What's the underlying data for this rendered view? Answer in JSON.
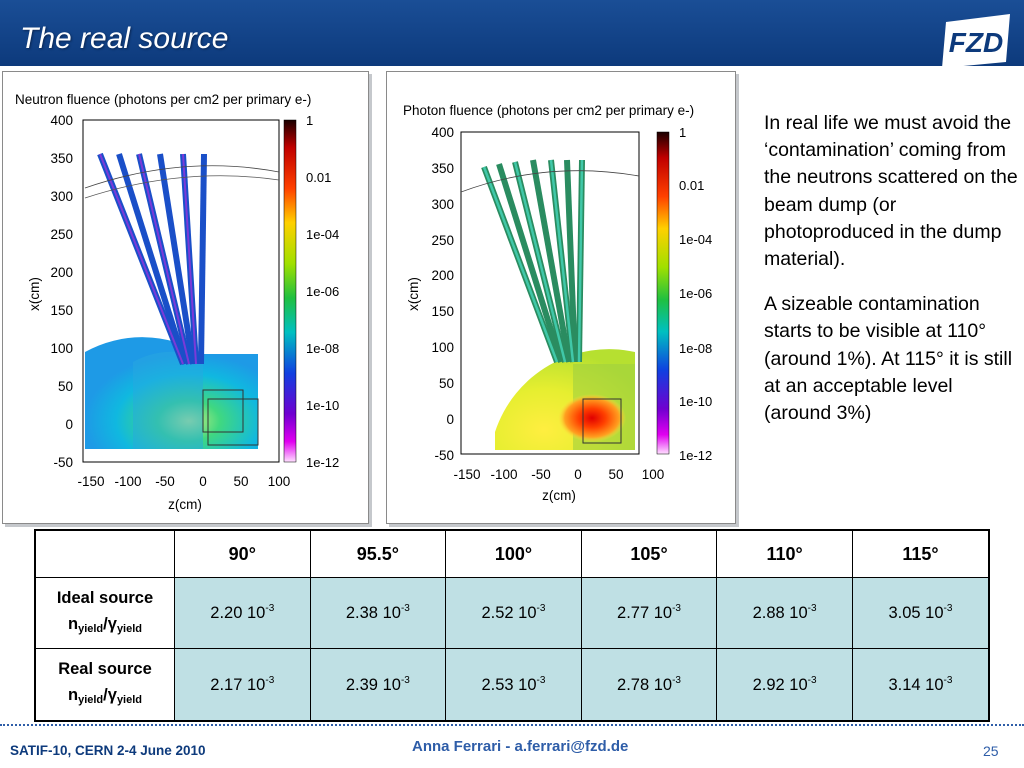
{
  "slide": {
    "title": "The real source",
    "logo_text": "FZD"
  },
  "plots": [
    {
      "title": "Neutron fluence (photons per cm2 per primary e-)",
      "ylabel": "x(cm)",
      "xlabel": "z(cm)",
      "yticks": [
        "400",
        "350",
        "300",
        "250",
        "200",
        "150",
        "100",
        "50",
        "0",
        "-50"
      ],
      "xticks": [
        "-150",
        "-100",
        "-50",
        "0",
        "50",
        "100"
      ],
      "colorbar_labels": [
        "1",
        "0.01",
        "1e-04",
        "1e-06",
        "1e-08",
        "1e-10",
        "1e-12"
      ]
    },
    {
      "title": "Photon fluence (photons per cm2 per primary e-)",
      "ylabel": "x(cm)",
      "xlabel": "z(cm)",
      "yticks": [
        "400",
        "350",
        "300",
        "250",
        "200",
        "150",
        "100",
        "50",
        "0",
        "-50"
      ],
      "xticks": [
        "-150",
        "-100",
        "-50",
        "0",
        "50",
        "100"
      ],
      "colorbar_labels": [
        "1",
        "0.01",
        "1e-04",
        "1e-06",
        "1e-08",
        "1e-10",
        "1e-12"
      ]
    }
  ],
  "text": {
    "para1": "In real life we must avoid  the ‘contamination’ coming from the neutrons scattered on the beam dump (or photoproduced in the dump material).",
    "para2": "A sizeable contamination starts to be visible at 110° (around 1%). At 115° it is still at an acceptable level  (around 3%)"
  },
  "table": {
    "headers": [
      "90°",
      "95.5°",
      "100°",
      "105°",
      "110°",
      "115°"
    ],
    "rows": [
      {
        "label": "Ideal source",
        "values": [
          "2.20 10",
          "2.38 10",
          "2.52 10",
          "2.77 10",
          "2.88 10",
          "3.05 10"
        ]
      },
      {
        "label": "Real source",
        "values": [
          "2.17 10",
          "2.39 10",
          "2.53 10",
          "2.78 10",
          "2.92 10",
          "3.14 10"
        ]
      }
    ],
    "exponent": "-3",
    "quantity_n": "n",
    "quantity_sub": "yield",
    "quantity_slash": "/",
    "quantity_gamma": "γ"
  },
  "footer": {
    "left": "SATIF-10, CERN  2-4 June 2010",
    "center": "Anna Ferrari  -   a.ferrari@fzd.de",
    "page": "25"
  }
}
